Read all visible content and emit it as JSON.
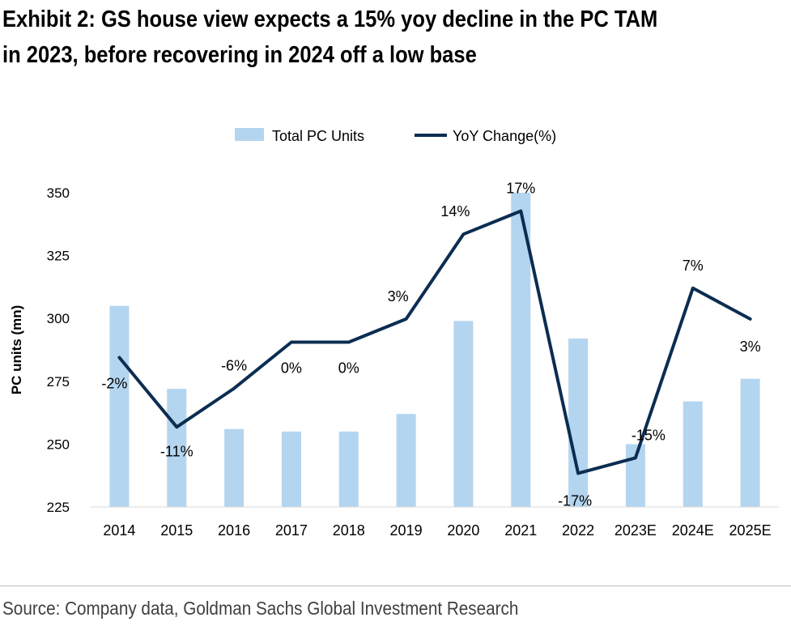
{
  "title": {
    "line1": "Exhibit 2: GS house view expects a 15% yoy decline in the PC TAM",
    "line2": "in 2023, before recovering in 2024 off a low base"
  },
  "source": "Source: Company data, Goldman Sachs Global Investment Research",
  "colors": {
    "bar": "#b4d5ef",
    "line": "#0c2d51",
    "divider": "#bfbfbf"
  },
  "chart_data": {
    "type": "bar",
    "categories": [
      "2014",
      "2015",
      "2016",
      "2017",
      "2018",
      "2019",
      "2020",
      "2021",
      "2022",
      "2023E",
      "2024E",
      "2025E"
    ],
    "ylabel": "PC units (mn)",
    "ylim": [
      225,
      350
    ],
    "yticks": [
      225,
      250,
      275,
      300,
      325,
      350
    ],
    "legend_position": "top-center",
    "grid": false,
    "series": [
      {
        "name": "Total PC Units",
        "type": "bar",
        "values": [
          305,
          272,
          256,
          255,
          255,
          262,
          299,
          350,
          292,
          250,
          267,
          276
        ]
      },
      {
        "name": "YoY Change(%)",
        "type": "line",
        "values": [
          -2,
          -11,
          -6,
          0,
          0,
          3,
          14,
          17,
          -17,
          -15,
          7,
          3
        ],
        "labels": [
          "-2%",
          "-11%",
          "-6%",
          "0%",
          "0%",
          "3%",
          "14%",
          "17%",
          "-17%",
          "-15%",
          "7%",
          "3%"
        ],
        "secondary_axis_shown": false
      }
    ]
  }
}
